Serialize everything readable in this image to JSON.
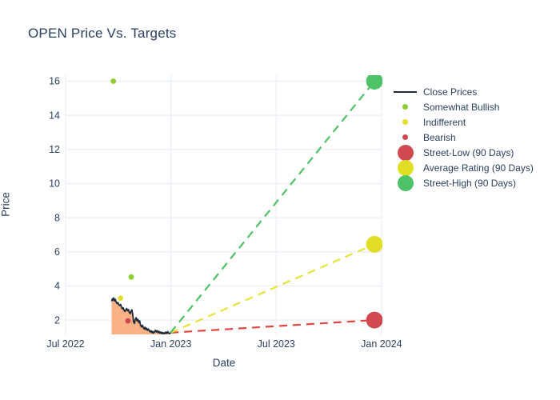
{
  "header": {
    "title": "OPEN Price Vs. Targets"
  },
  "colors": {
    "text": "#2a3f5f",
    "grid": "#e8edf6",
    "close_line": "#1d2a39",
    "close_fill": "#f9b185",
    "somewhat_bullish": "#8dce30",
    "indifferent": "#e3de2b",
    "bearish": "#d0494f",
    "street_low": "#d0494f",
    "average_rating": "#e2de25",
    "street_high": "#4ec266",
    "projection_low": "#e2453f",
    "projection_avg": "#e8e33c",
    "projection_high": "#4ec266"
  },
  "legend": {
    "items": [
      {
        "id": "close-prices",
        "label": "Close Prices",
        "marker": "line",
        "color": "#1d2a39"
      },
      {
        "id": "somewhat-bullish",
        "label": "Somewhat Bullish",
        "marker": "dot-small",
        "color": "#8dce30"
      },
      {
        "id": "indifferent",
        "label": "Indifferent",
        "marker": "dot-small",
        "color": "#e3de2b"
      },
      {
        "id": "bearish",
        "label": "Bearish",
        "marker": "dot-small",
        "color": "#d0494f"
      },
      {
        "id": "street-low",
        "label": "Street-Low (90 Days)",
        "marker": "dot-large",
        "color": "#d0494f"
      },
      {
        "id": "average-rating",
        "label": "Average Rating (90 Days)",
        "marker": "dot-large",
        "color": "#e2de25"
      },
      {
        "id": "street-high",
        "label": "Street-High (90 Days)",
        "marker": "dot-large",
        "color": "#4ec266"
      }
    ]
  },
  "chart_data": {
    "type": "line",
    "title": "OPEN Price Vs. Targets",
    "xlabel": "Date",
    "ylabel": "Price",
    "grid": true,
    "legend_position": "right",
    "x_unit": "months since Jul 2022",
    "x_range": [
      0,
      18.05
    ],
    "y_range": [
      1.16,
      16.35
    ],
    "x_ticks": [
      {
        "label": "Jul 2022",
        "pos": 0
      },
      {
        "label": "Jan 2023",
        "pos": 6
      },
      {
        "label": "Jul 2023",
        "pos": 12
      },
      {
        "label": "Jan 2024",
        "pos": 18
      }
    ],
    "y_ticks": [
      2,
      4,
      6,
      8,
      10,
      12,
      14,
      16
    ],
    "close_prices": {
      "name": "Close Prices",
      "points": [
        [
          2.62,
          3.1
        ],
        [
          2.66,
          3.24
        ],
        [
          2.7,
          3.18
        ],
        [
          2.74,
          3.3
        ],
        [
          2.78,
          3.12
        ],
        [
          2.83,
          3.22
        ],
        [
          2.88,
          3.05
        ],
        [
          2.93,
          2.97
        ],
        [
          2.98,
          3.03
        ],
        [
          3.03,
          2.9
        ],
        [
          3.08,
          2.85
        ],
        [
          3.13,
          2.92
        ],
        [
          3.18,
          2.78
        ],
        [
          3.23,
          2.66
        ],
        [
          3.28,
          2.72
        ],
        [
          3.33,
          2.58
        ],
        [
          3.38,
          2.5
        ],
        [
          3.43,
          2.6
        ],
        [
          3.48,
          2.68
        ],
        [
          3.53,
          2.55
        ],
        [
          3.58,
          2.62
        ],
        [
          3.63,
          2.45
        ],
        [
          3.68,
          2.38
        ],
        [
          3.73,
          2.52
        ],
        [
          3.78,
          2.6
        ],
        [
          3.83,
          2.3
        ],
        [
          3.87,
          1.9
        ],
        [
          3.92,
          1.8
        ],
        [
          3.97,
          2.05
        ],
        [
          4.02,
          2.14
        ],
        [
          4.07,
          1.95
        ],
        [
          4.12,
          2.04
        ],
        [
          4.17,
          1.86
        ],
        [
          4.22,
          1.95
        ],
        [
          4.27,
          1.7
        ],
        [
          4.32,
          1.6
        ],
        [
          4.37,
          1.7
        ],
        [
          4.42,
          1.58
        ],
        [
          4.47,
          1.48
        ],
        [
          4.52,
          1.58
        ],
        [
          4.57,
          1.44
        ],
        [
          4.62,
          1.52
        ],
        [
          4.67,
          1.4
        ],
        [
          4.72,
          1.48
        ],
        [
          4.77,
          1.38
        ],
        [
          4.82,
          1.3
        ],
        [
          4.87,
          1.38
        ],
        [
          4.92,
          1.26
        ],
        [
          4.97,
          1.34
        ],
        [
          5.02,
          1.24
        ],
        [
          5.07,
          1.32
        ],
        [
          5.12,
          1.4
        ],
        [
          5.17,
          1.3
        ],
        [
          5.22,
          1.38
        ],
        [
          5.27,
          1.26
        ],
        [
          5.32,
          1.34
        ],
        [
          5.37,
          1.24
        ],
        [
          5.42,
          1.3
        ],
        [
          5.47,
          1.2
        ],
        [
          5.52,
          1.28
        ],
        [
          5.57,
          1.18
        ],
        [
          5.62,
          1.26
        ],
        [
          5.67,
          1.2
        ],
        [
          5.72,
          1.3
        ],
        [
          5.77,
          1.22
        ],
        [
          5.82,
          1.32
        ],
        [
          5.87,
          1.24
        ],
        [
          5.92,
          1.2
        ],
        [
          5.98,
          1.26
        ]
      ]
    },
    "ratings": [
      {
        "x": 2.72,
        "y": 16.0,
        "rating": "Somewhat Bullish",
        "color": "#8dce30"
      },
      {
        "x": 3.13,
        "y": 3.28,
        "rating": "Indifferent",
        "color": "#e3de2b"
      },
      {
        "x": 3.55,
        "y": 1.95,
        "rating": "Bearish",
        "color": "#d0494f"
      },
      {
        "x": 3.74,
        "y": 4.52,
        "rating": "Somewhat Bullish",
        "color": "#8dce30"
      }
    ],
    "targets": [
      {
        "id": "street-low",
        "label": "Street-Low (90 Days)",
        "x": 17.6,
        "y": 2.0,
        "color": "#d0494f",
        "line_color": "#e2453f"
      },
      {
        "id": "average-rating",
        "label": "Average Rating (90 Days)",
        "x": 17.6,
        "y": 6.44,
        "color": "#e2de25",
        "line_color": "#e8e33c"
      },
      {
        "id": "street-high",
        "label": "Street-High (90 Days)",
        "x": 17.6,
        "y": 16.0,
        "color": "#4ec266",
        "line_color": "#4ec266"
      }
    ]
  }
}
